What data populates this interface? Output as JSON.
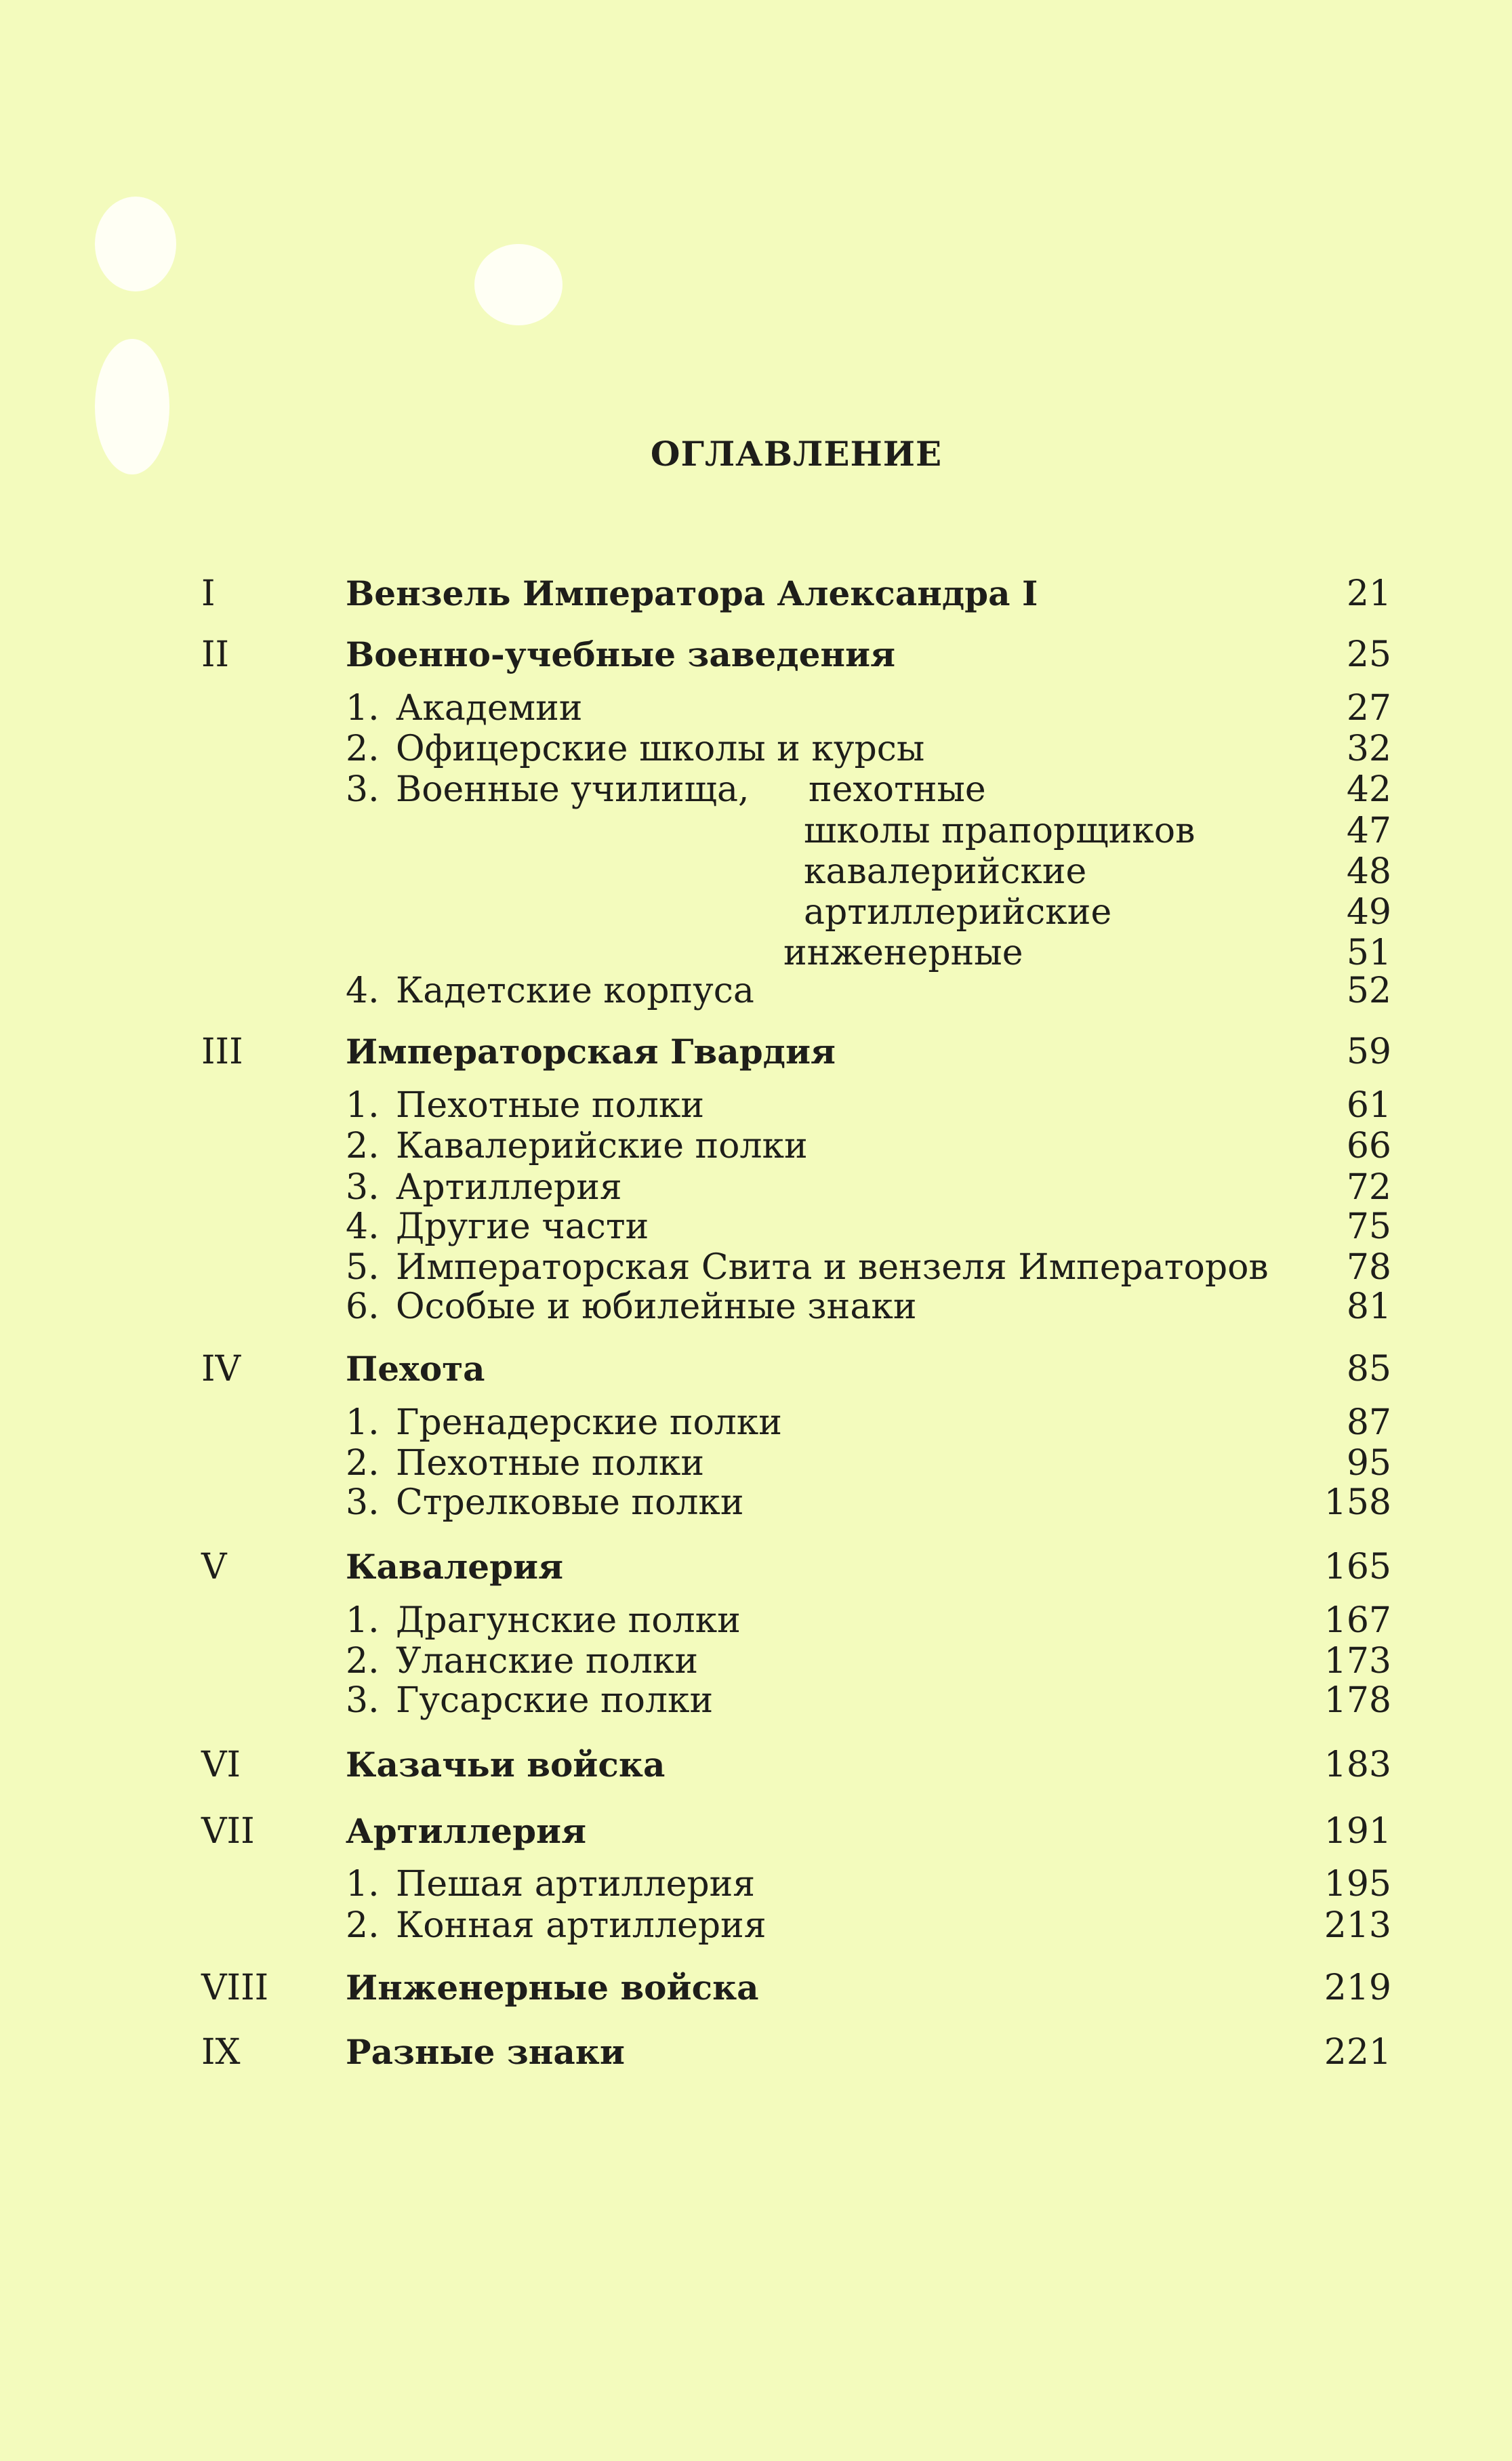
{
  "title": "ОГЛАВЛЕНИЕ",
  "sections": [
    {
      "roman": "I",
      "title": "Вензель Императора Александра I",
      "page": "21",
      "items": []
    },
    {
      "roman": "II",
      "title": "Военно-учебные заведения",
      "page": "25",
      "items": [
        {
          "num": "1.",
          "text": "Академии",
          "page": "27"
        },
        {
          "num": "2.",
          "text": "Офицерские школы и курсы",
          "page": "32"
        },
        {
          "num": "3.",
          "text": "Военные училища,",
          "subitems": [
            {
              "text": "пехотные",
              "page": "42"
            },
            {
              "text": "школы прапорщиков",
              "page": "47"
            },
            {
              "text": "кавалерийские",
              "page": "48"
            },
            {
              "text": "артиллерийские",
              "page": "49"
            },
            {
              "text": "инженерные",
              "page": "51"
            }
          ]
        },
        {
          "num": "4.",
          "text": "Кадетские корпуса",
          "page": "52"
        }
      ]
    },
    {
      "roman": "III",
      "title": "Императорская Гвардия",
      "page": "59",
      "items": [
        {
          "num": "1.",
          "text": "Пехотные полки",
          "page": "61"
        },
        {
          "num": "2.",
          "text": "Кавалерийские полки",
          "page": "66"
        },
        {
          "num": "3.",
          "text": "Артиллерия",
          "page": "72"
        },
        {
          "num": "4.",
          "text": "Другие части",
          "page": "75"
        },
        {
          "num": "5.",
          "text": "Императорская Свита и вензеля Императоров",
          "page": "78"
        },
        {
          "num": "6.",
          "text": "Особые и юбилейные знаки",
          "page": "81"
        }
      ]
    },
    {
      "roman": "IV",
      "title": "Пехота",
      "page": "85",
      "items": [
        {
          "num": "1.",
          "text": "Гренадерские полки",
          "page": "87"
        },
        {
          "num": "2.",
          "text": "Пехотные полки",
          "page": "95"
        },
        {
          "num": "3.",
          "text": "Стрелковые полки",
          "page": "158"
        }
      ]
    },
    {
      "roman": "V",
      "title": "Кавалерия",
      "page": "165",
      "items": [
        {
          "num": "1.",
          "text": "Драгунские полки",
          "page": "167"
        },
        {
          "num": "2.",
          "text": "Уланские полки",
          "page": "173"
        },
        {
          "num": "3.",
          "text": "Гусарские полки",
          "page": "178"
        }
      ]
    },
    {
      "roman": "VI",
      "title": "Казачьи войска",
      "page": "183",
      "items": []
    },
    {
      "roman": "VII",
      "title": "Артиллерия",
      "page": "191",
      "items": [
        {
          "num": "1.",
          "text": "Пешая артиллерия",
          "page": "195"
        },
        {
          "num": "2.",
          "text": "Конная артиллерия",
          "page": "213"
        }
      ]
    },
    {
      "roman": "VIII",
      "title": "Инженерные войска",
      "page": "219",
      "items": []
    },
    {
      "roman": "IX",
      "title": "Разные знаки",
      "page": "221",
      "items": []
    }
  ]
}
